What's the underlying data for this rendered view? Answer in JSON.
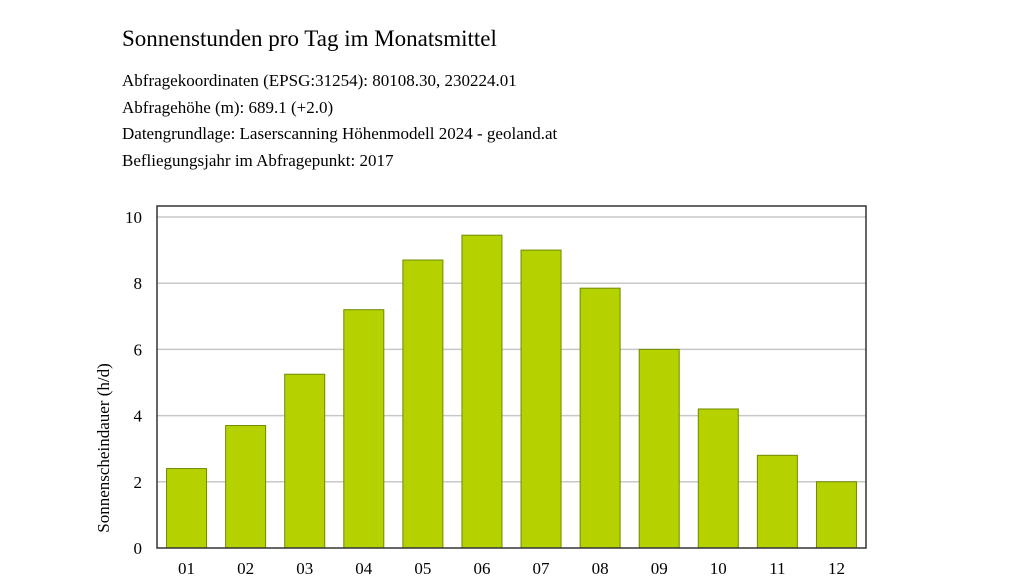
{
  "header": {
    "title": "Sonnenstunden pro Tag im Monatsmittel",
    "lines": [
      "Abfragekoordinaten (EPSG:31254): 80108.30, 230224.01",
      "Abfragehöhe (m): 689.1 (+2.0)",
      "Datengrundlage: Laserscanning Höhenmodell 2024 - geoland.at",
      "Befliegungsjahr im Abfragepunkt: 2017"
    ]
  },
  "colors": {
    "bar_fill": "#b5d200",
    "bar_stroke": "#6f8a00",
    "grid": "#c8c8c8",
    "frame": "#333333"
  },
  "chart_data": {
    "type": "bar",
    "title": "Sonnenstunden pro Tag im Monatsmittel",
    "xlabel": "",
    "ylabel": "Sonnenscheindauer (h/d)",
    "categories": [
      "01",
      "02",
      "03",
      "04",
      "05",
      "06",
      "07",
      "08",
      "09",
      "10",
      "11",
      "12"
    ],
    "values": [
      2.4,
      3.7,
      5.25,
      7.2,
      8.7,
      9.45,
      9.0,
      7.85,
      6.0,
      4.2,
      2.8,
      2.0
    ],
    "ylim": [
      0,
      10
    ],
    "yticks": [
      "0",
      "2",
      "4",
      "6",
      "8",
      "10"
    ],
    "grid": true,
    "legend": "none"
  }
}
